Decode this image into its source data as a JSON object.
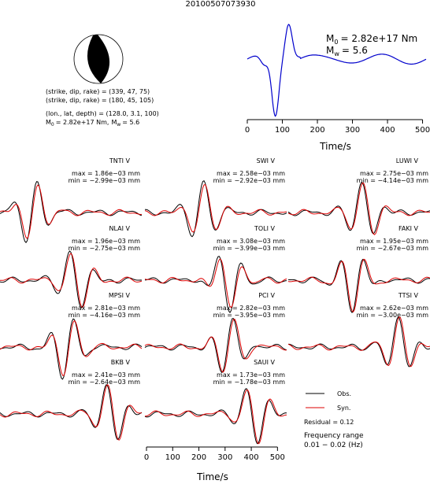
{
  "title": "20100507073930",
  "mechanism": {
    "lines": [
      "(strike, dip, rake) = (339, 47, 75)",
      "(strike, dip, rake) = (180, 45, 105)",
      "(lon., lat, depth) = (128.0, 3.1, 100)"
    ],
    "m_symbol": "M",
    "m0_sub": "0",
    "m0_value": "= 2.82e+17 Nm,",
    "mw_sub": "w",
    "mw_value": "= 5.6"
  },
  "stf": {
    "xlabel": "Time/s",
    "xlim": [
      0,
      510
    ],
    "xticks": [
      0,
      100,
      200,
      300,
      400,
      500
    ],
    "color": "#0000cc",
    "m_symbol": "M",
    "m0_sub": "0",
    "m0_value": "= 2.82e+17 Nm",
    "mw_sub": "w",
    "mw_value": "= 5.6"
  },
  "stations": [
    {
      "name": "TNTI V",
      "max": "max = 1.86e−03 mm",
      "min": "min = −2.99e−03 mm"
    },
    {
      "name": "SWI V",
      "max": "max = 2.58e−03 mm",
      "min": "min = −2.92e−03 mm"
    },
    {
      "name": "LUWI V",
      "max": "max = 2.75e−03 mm",
      "min": "min = −4.14e−03 mm"
    },
    {
      "name": "NLAI V",
      "max": "max = 1.96e−03 mm",
      "min": "min = −2.75e−03 mm"
    },
    {
      "name": "TOLI V",
      "max": "max = 3.08e−03 mm",
      "min": "min = −3.99e−03 mm"
    },
    {
      "name": "FAKI V",
      "max": "max = 1.95e−03 mm",
      "min": "min = −2.67e−03 mm"
    },
    {
      "name": "MPSI V",
      "max": "max = 2.81e−03 mm",
      "min": "min = −4.16e−03 mm"
    },
    {
      "name": "PCI V",
      "max": "max = 2.82e−03 mm",
      "min": "min = −3.95e−03 mm"
    },
    {
      "name": "TTSI V",
      "max": "max = 2.62e−03 mm",
      "min": "min = −3.00e−03 mm"
    },
    {
      "name": "BKB V",
      "max": "max = 2.41e−03 mm",
      "min": "min = −2.64e−03 mm"
    },
    {
      "name": "SAUI V",
      "max": "max = 1.73e−03 mm",
      "min": "min = −1.78e−03 mm"
    }
  ],
  "legend": {
    "obs": "Obs.",
    "obs_color": "#000000",
    "syn": "Syn.",
    "syn_color": "#dd0000"
  },
  "residual": "Residual = 0.12",
  "frequency_title": "Frequency range",
  "frequency_range": "0.01 − 0.02 (Hz)",
  "axis": {
    "xlabel": "Time/s",
    "xlim": [
      0,
      520
    ],
    "xticks": [
      0,
      100,
      200,
      300,
      400,
      500
    ]
  }
}
